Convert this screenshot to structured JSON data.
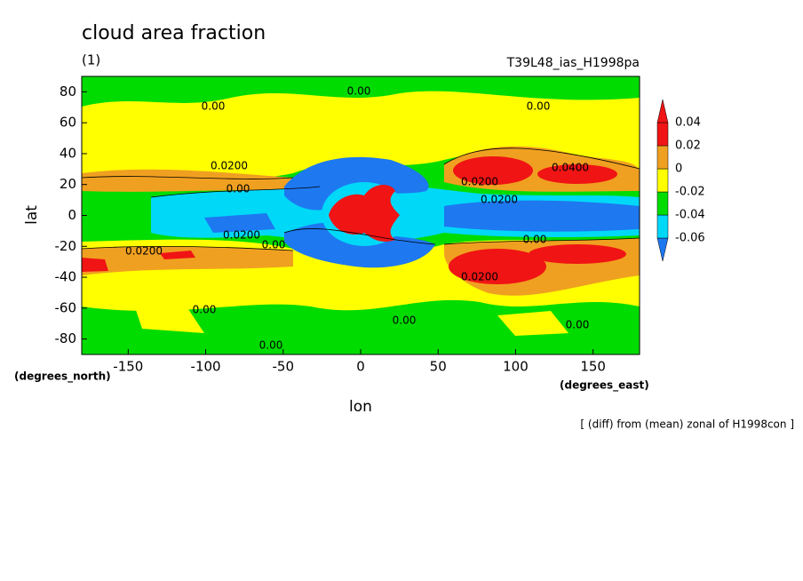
{
  "chart_data": {
    "type": "contour",
    "title": "cloud area fraction",
    "subtitle": "(1)",
    "run_label": "T39L48_ias_H1998pa",
    "x_label": "lon",
    "y_label": "lat",
    "x_units": "(degrees_east)",
    "y_units": "(degrees_north)",
    "note": "[ (diff) from (mean) zonal of H1998con ]",
    "xlim": [
      -180,
      180
    ],
    "xticks": [
      -150,
      -100,
      -50,
      0,
      50,
      100,
      150
    ],
    "ylim": [
      -90,
      90
    ],
    "yticks": [
      -80,
      -60,
      -40,
      -20,
      0,
      20,
      40,
      60,
      80
    ],
    "colorbar": {
      "levels": [
        -0.06,
        -0.04,
        -0.02,
        0,
        0.02,
        0.04
      ],
      "colors": [
        "#1e78f0",
        "#00d8f8",
        "#00dc00",
        "#ffff00",
        "#f0a020",
        "#f01414",
        "#f01414"
      ]
    },
    "contour_labels": [
      "0.00",
      "0.00",
      "0.00",
      "0.0200",
      "0.00",
      "0.0400",
      "0.0200",
      "0.0200",
      "0.0200",
      "0.0200",
      "0.00",
      "0.00",
      "0.0200",
      "0.00",
      "0.00",
      "0.00",
      "0.00"
    ]
  }
}
